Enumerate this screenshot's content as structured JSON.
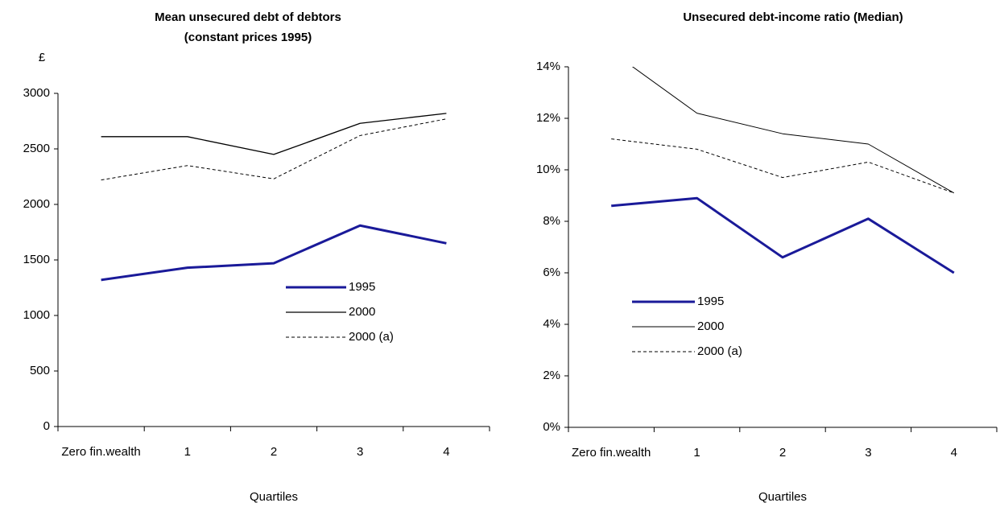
{
  "chart_data": [
    {
      "type": "line",
      "title": "Mean unsecured debt of debtors",
      "subtitle": "(constant prices 1995)",
      "y_label": "£",
      "x_label": "Quartiles",
      "categories": [
        "Zero fin.wealth",
        "1",
        "2",
        "3",
        "4"
      ],
      "series": [
        {
          "name": "1995",
          "color": "#1a1a99",
          "linewidth": 3,
          "linestyle": "solid",
          "values": [
            1320,
            1430,
            1470,
            1810,
            1650
          ]
        },
        {
          "name": "2000",
          "color": "#000000",
          "linewidth": 1.3,
          "linestyle": "solid",
          "values": [
            2610,
            2610,
            2450,
            2730,
            2820
          ]
        },
        {
          "name": "2000 (a)",
          "color": "#000000",
          "linewidth": 1,
          "linestyle": "dashed",
          "values": [
            2220,
            2350,
            2230,
            2620,
            2770
          ]
        }
      ],
      "ylim": [
        0,
        3000
      ],
      "yticks": [
        0,
        500,
        1000,
        1500,
        2000,
        2500,
        3000
      ],
      "grid": false,
      "legend": "center right"
    },
    {
      "type": "line",
      "title": "Unsecured debt-income ratio (Median)",
      "x_label": "Quartiles",
      "categories": [
        "Zero fin.wealth",
        "1",
        "2",
        "3",
        "4"
      ],
      "series": [
        {
          "name": "1995",
          "color": "#1a1a99",
          "linewidth": 3,
          "linestyle": "solid",
          "values": [
            8.6,
            8.9,
            6.6,
            8.1,
            6.0
          ]
        },
        {
          "name": "2000",
          "color": "#000000",
          "linewidth": 1,
          "linestyle": "solid",
          "values": [
            14.6,
            12.2,
            11.4,
            11.0,
            9.1
          ]
        },
        {
          "name": "2000 (a)",
          "color": "#000000",
          "linewidth": 1,
          "linestyle": "dashed",
          "values": [
            11.2,
            10.8,
            9.7,
            10.3,
            9.1
          ]
        }
      ],
      "ylim": [
        0,
        14
      ],
      "yticks": [
        {
          "value": 0,
          "label": "0%"
        },
        {
          "value": 2,
          "label": "2%"
        },
        {
          "value": 4,
          "label": "4%"
        },
        {
          "value": 6,
          "label": "6%"
        },
        {
          "value": 8,
          "label": "8%"
        },
        {
          "value": 10,
          "label": "10%"
        },
        {
          "value": 12,
          "label": "12%"
        },
        {
          "value": 14,
          "label": "14%"
        }
      ],
      "grid": false,
      "legend": "center left"
    }
  ]
}
